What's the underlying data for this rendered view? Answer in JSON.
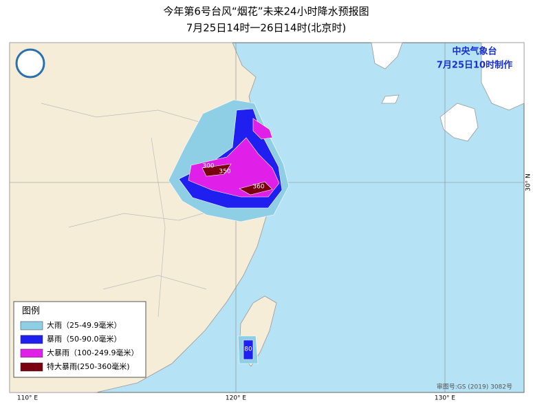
{
  "header": {
    "title": "今年第6号台风“烟花”未来24小时降水预报图",
    "subtitle": "7月25日14时一26日14时(北京时)"
  },
  "issuer": {
    "agency": "中央气象台",
    "time": "7月25日10时制作"
  },
  "legend": {
    "title": "图例",
    "items": [
      {
        "label": "大雨（25-49.9毫米）",
        "color": "#8ecfe6"
      },
      {
        "label": "暴雨（50-90.0毫米）",
        "color": "#1f1ff0"
      },
      {
        "label": "大暴雨（100-249.9毫米）",
        "color": "#e020e8"
      },
      {
        "label": "特大暴雨(250-360毫米)",
        "color": "#7a0010"
      }
    ]
  },
  "map": {
    "contour_labels": [
      "300",
      "350",
      "360",
      "80"
    ],
    "longitude_labels": [
      "110° E",
      "120° E",
      "130° E"
    ],
    "latitude_labels": [
      "30° N"
    ]
  },
  "footer": {
    "approval": "审图号:GS (2019) 3082号"
  }
}
